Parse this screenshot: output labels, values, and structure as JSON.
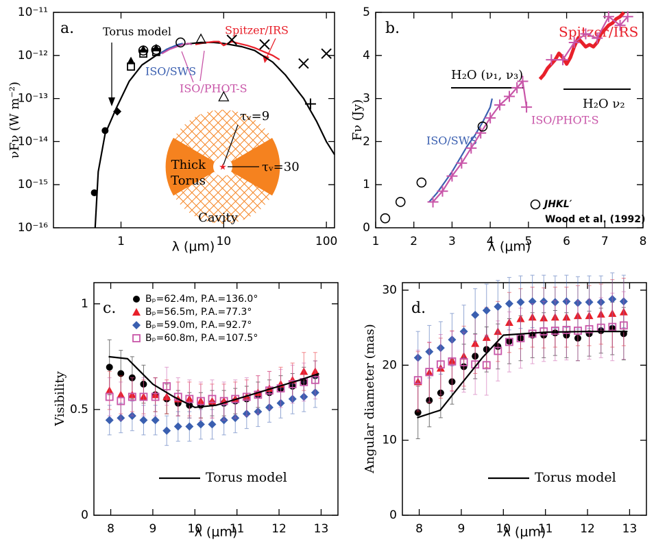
{
  "chart_data": [
    {
      "type": "scatter",
      "panel_label": "a.",
      "xlabel": "λ (μm)",
      "ylabel": "νFν (W m⁻²)",
      "xlog": true,
      "ylog": true,
      "xlim": [
        0.22,
        120
      ],
      "ylim": [
        1e-16,
        1e-11
      ],
      "xticks": [
        1,
        10,
        100
      ],
      "yticks": [
        {
          "value": 1e-16,
          "label": "10⁻¹⁶"
        },
        {
          "value": 1e-15,
          "label": "10⁻¹⁵"
        },
        {
          "value": 1e-14,
          "label": "10⁻¹⁴"
        },
        {
          "value": 1e-13,
          "label": "10⁻¹³"
        },
        {
          "value": 1e-12,
          "label": "10⁻¹²"
        },
        {
          "value": 1e-11,
          "label": "10⁻¹¹"
        }
      ],
      "series": [
        {
          "name": "Torus model",
          "style": "line",
          "color": "#000000",
          "x": [
            0.56,
            0.6,
            0.7,
            0.9,
            1.2,
            1.6,
            2.2,
            3,
            4,
            6,
            8,
            10,
            15,
            20,
            30,
            40,
            60,
            80,
            100,
            120
          ],
          "values": [
            1e-16,
            2e-15,
            1.5e-14,
            6e-14,
            2.5e-13,
            6e-13,
            1e-12,
            1.5e-12,
            1.8e-12,
            2e-12,
            2e-12,
            1.9e-12,
            1.6e-12,
            1.3e-12,
            7e-13,
            3.5e-13,
            1e-13,
            3e-14,
            1e-14,
            5e-15
          ]
        },
        {
          "name": "Spitzer/IRS",
          "style": "line",
          "color": "#e8202a",
          "x": [
            5.3,
            6,
            7,
            8,
            9,
            10,
            11,
            12,
            14,
            17,
            20,
            25,
            30,
            35
          ],
          "values": [
            1.8e-12,
            1.9e-12,
            2e-12,
            2.1e-12,
            2.1e-12,
            1.7e-12,
            1.9e-12,
            2.1e-12,
            1.9e-12,
            1.7e-12,
            1.5e-12,
            1.2e-12,
            1e-12,
            8e-13
          ]
        },
        {
          "name": "ISO/SWS",
          "style": "line",
          "color": "#3a5fb0",
          "x": [
            2.4,
            2.8,
            3.2,
            3.6,
            4.0
          ],
          "values": [
            1.1e-12,
            1.4e-12,
            1.6e-12,
            1.8e-12,
            1.9e-12
          ]
        },
        {
          "name": "ISO/PHOT-S",
          "style": "line",
          "color": "#c855a8",
          "x": [
            2.5,
            3,
            3.5,
            4,
            4.5,
            4.9
          ],
          "values": [
            1.1e-12,
            1.4e-12,
            1.6e-12,
            1.8e-12,
            1.9e-12,
            1.8e-12
          ]
        },
        {
          "style": "circle",
          "color": "#000000",
          "x": [
            0.55,
            0.7
          ],
          "values": [
            6.5e-16,
            1.8e-14
          ]
        },
        {
          "style": "diamond",
          "color": "#000000",
          "x": [
            0.92
          ],
          "values": [
            5e-14
          ]
        },
        {
          "style": "triangle",
          "color": "#000000",
          "x": [
            1.25,
            1.65,
            2.2
          ],
          "values": [
            7.5e-13,
            1.4e-12,
            1.5e-12
          ]
        },
        {
          "style": "square-open",
          "color": "#000000",
          "x": [
            1.25,
            1.65,
            2.2
          ],
          "values": [
            5.5e-13,
            1.1e-12,
            1.2e-12
          ]
        },
        {
          "style": "circle-open",
          "color": "#000000",
          "x": [
            1.65,
            2.2,
            3.8
          ],
          "values": [
            1.3e-12,
            1.35e-12,
            2e-12
          ]
        },
        {
          "style": "triangle-open",
          "color": "#000000",
          "x": [
            6,
            10
          ],
          "values": [
            2.4e-12,
            1.1e-13
          ]
        },
        {
          "style": "cross",
          "color": "#000000",
          "x": [
            12,
            25,
            60,
            100
          ],
          "values": [
            2.3e-12,
            1.8e-12,
            6.5e-13,
            1.1e-12
          ]
        },
        {
          "style": "plus",
          "color": "#000000",
          "x": [
            70
          ],
          "values": [
            7.5e-14
          ]
        }
      ],
      "annotations": [
        "Thick",
        "Torus",
        "Cavity",
        "τᵥ=9",
        "τᵥ=30"
      ]
    },
    {
      "type": "scatter",
      "panel_label": "b.",
      "xlabel": "λ (μm)",
      "ylabel": "Fν (Jy)",
      "xlim": [
        1,
        8
      ],
      "ylim": [
        0,
        5
      ],
      "xticks": [
        1,
        2,
        3,
        4,
        5,
        6,
        7,
        8
      ],
      "yticks": [
        0,
        1,
        2,
        3,
        4,
        5
      ],
      "series": [
        {
          "name": "Spitzer/IRS",
          "style": "line-thick",
          "color": "#e8202a",
          "x": [
            5.3,
            5.4,
            5.5,
            5.6,
            5.7,
            5.8,
            5.9,
            6.0,
            6.1,
            6.2,
            6.3,
            6.4,
            6.5,
            6.6,
            6.7,
            6.8,
            6.9,
            7.0,
            7.1,
            7.2,
            7.3,
            7.4,
            7.5
          ],
          "values": [
            3.45,
            3.55,
            3.7,
            3.8,
            3.9,
            4.05,
            3.95,
            3.8,
            3.95,
            4.2,
            4.4,
            4.3,
            4.2,
            4.25,
            4.2,
            4.3,
            4.5,
            4.6,
            4.7,
            4.75,
            4.85,
            4.9,
            5.0
          ]
        },
        {
          "name": "ISO/SWS",
          "style": "line",
          "color": "#3a5fb0",
          "x": [
            2.4,
            2.6,
            2.8,
            3.0,
            3.2,
            3.4,
            3.6,
            3.8,
            4.0,
            4.05
          ],
          "values": [
            0.6,
            0.8,
            1.05,
            1.3,
            1.6,
            1.9,
            2.15,
            2.45,
            2.8,
            3.0
          ]
        },
        {
          "name": "ISO/PHOT-S",
          "style": "line-plus",
          "color": "#c855a8",
          "x": [
            2.5,
            2.75,
            3.0,
            3.25,
            3.5,
            3.75,
            4.0,
            4.25,
            4.5,
            4.7,
            4.85,
            4.95,
            5.3,
            5.6,
            5.9,
            6.2,
            6.5,
            6.8,
            7.1,
            7.4,
            7.6
          ],
          "values": [
            0.6,
            0.85,
            1.2,
            1.5,
            1.85,
            2.2,
            2.55,
            2.85,
            3.05,
            3.25,
            3.4,
            2.8,
            null,
            3.9,
            3.9,
            4.3,
            4.5,
            4.4,
            4.9,
            4.7,
            4.9
          ]
        },
        {
          "name": "JHKL′",
          "style": "circle-open",
          "color": "#000000",
          "x": [
            1.25,
            1.65,
            2.2,
            3.8
          ],
          "values": [
            0.22,
            0.6,
            1.05,
            2.35
          ]
        }
      ],
      "annotations": [
        "H₂O (ν₁, ν₃)",
        "H₂O ν₂",
        "Wood et al. (1992)"
      ]
    },
    {
      "type": "scatter",
      "panel_label": "c.",
      "xlabel": "λ (μm)",
      "ylabel": "Visibility",
      "xlim": [
        7.6,
        13.4
      ],
      "ylim": [
        0,
        1.1
      ],
      "xticks": [
        8,
        9,
        10,
        11,
        12,
        13
      ],
      "yticks": [
        0,
        0.5,
        1
      ],
      "x": [
        7.97,
        8.24,
        8.51,
        8.78,
        9.06,
        9.33,
        9.6,
        9.87,
        10.14,
        10.41,
        10.69,
        10.96,
        11.23,
        11.5,
        11.77,
        12.04,
        12.32,
        12.59,
        12.86
      ],
      "series": [
        {
          "name": "Bₚ=62.4m, P.A.=136.0°",
          "style": "circle",
          "color": "#000000",
          "values": [
            0.7,
            0.67,
            0.65,
            0.62,
            0.57,
            0.55,
            0.53,
            0.52,
            0.52,
            0.53,
            0.53,
            0.54,
            0.55,
            0.57,
            0.58,
            0.6,
            0.61,
            0.63,
            0.66
          ],
          "errors": [
            0.13,
            0.11,
            0.1,
            0.09,
            0.08,
            0.07,
            0.06,
            0.06,
            0.06,
            0.06,
            0.06,
            0.06,
            0.06,
            0.06,
            0.06,
            0.06,
            0.06,
            0.07,
            0.07
          ]
        },
        {
          "name": "Bₚ=56.5m, P.A.=77.3°",
          "style": "triangle",
          "color": "#e8202a",
          "values": [
            0.59,
            0.57,
            0.57,
            0.56,
            0.57,
            0.56,
            0.55,
            0.55,
            0.54,
            0.54,
            0.54,
            0.55,
            0.56,
            0.58,
            0.6,
            0.62,
            0.64,
            0.68,
            0.68
          ],
          "errors": [
            0.09,
            0.09,
            0.08,
            0.08,
            0.08,
            0.08,
            0.08,
            0.08,
            0.08,
            0.08,
            0.08,
            0.08,
            0.08,
            0.08,
            0.08,
            0.08,
            0.08,
            0.09,
            0.09
          ]
        },
        {
          "name": "Bₚ=59.0m, P.A.=92.7°",
          "style": "diamond",
          "color": "#3a5fb0",
          "values": [
            0.45,
            0.46,
            0.47,
            0.45,
            0.45,
            0.4,
            0.42,
            0.42,
            0.43,
            0.43,
            0.45,
            0.46,
            0.48,
            0.49,
            0.51,
            0.53,
            0.55,
            0.56,
            0.58
          ],
          "errors": [
            0.07,
            0.07,
            0.07,
            0.07,
            0.07,
            0.07,
            0.07,
            0.07,
            0.07,
            0.07,
            0.07,
            0.07,
            0.07,
            0.07,
            0.07,
            0.07,
            0.07,
            0.07,
            0.07
          ]
        },
        {
          "name": "Bₚ=60.8m, P.A.=107.5°",
          "style": "square-open",
          "color": "#c855a8",
          "values": [
            0.56,
            0.54,
            0.56,
            0.56,
            0.56,
            0.61,
            0.56,
            0.55,
            0.54,
            0.55,
            0.54,
            0.55,
            0.56,
            0.57,
            0.59,
            0.6,
            0.62,
            0.63,
            0.64
          ],
          "errors": [
            0.09,
            0.09,
            0.09,
            0.09,
            0.09,
            0.09,
            0.09,
            0.09,
            0.09,
            0.09,
            0.09,
            0.09,
            0.09,
            0.09,
            0.09,
            0.09,
            0.09,
            0.09,
            0.09
          ]
        },
        {
          "name": "Torus model",
          "style": "line",
          "color": "#000000",
          "x": [
            7.95,
            8.4,
            8.6,
            9.0,
            9.5,
            10.0,
            10.5,
            11.0,
            11.5,
            12.0,
            12.5,
            12.95
          ],
          "values": [
            0.75,
            0.74,
            0.7,
            0.62,
            0.56,
            0.51,
            0.52,
            0.55,
            0.58,
            0.61,
            0.64,
            0.67
          ]
        }
      ]
    },
    {
      "type": "scatter",
      "panel_label": "d.",
      "xlabel": "λ (μm)",
      "ylabel": "Angular diameter (mas)",
      "xlim": [
        7.6,
        13.4
      ],
      "ylim": [
        0,
        31
      ],
      "xticks": [
        8,
        9,
        10,
        11,
        12,
        13
      ],
      "yticks": [
        0,
        10,
        20,
        30
      ],
      "x": [
        7.97,
        8.24,
        8.51,
        8.78,
        9.06,
        9.33,
        9.6,
        9.87,
        10.14,
        10.41,
        10.69,
        10.96,
        11.23,
        11.5,
        11.77,
        12.04,
        12.32,
        12.59,
        12.86
      ],
      "series": [
        {
          "style": "circle",
          "color": "#000000",
          "values": [
            13.7,
            15.3,
            16.3,
            17.8,
            19.8,
            21.2,
            22.1,
            22.5,
            23.2,
            23.6,
            24.0,
            24.0,
            24.3,
            24.0,
            23.6,
            24.2,
            24.6,
            24.9,
            24.2
          ],
          "errors": [
            3.5,
            3.5,
            3.3,
            3.0,
            3.0,
            3.0,
            3.0,
            3.0,
            3.0,
            3.0,
            3.0,
            3.0,
            3.0,
            3.0,
            3.0,
            3.0,
            3.0,
            3.5,
            3.5
          ]
        },
        {
          "style": "triangle",
          "color": "#e8202a",
          "values": [
            17.8,
            19.0,
            19.6,
            20.6,
            21.2,
            22.9,
            23.7,
            24.5,
            25.7,
            26.2,
            26.4,
            26.3,
            26.4,
            26.4,
            26.6,
            26.6,
            26.8,
            26.9,
            27.1
          ],
          "errors": [
            4,
            4,
            4,
            4,
            4,
            4,
            4,
            4,
            4,
            4,
            4,
            4,
            4,
            4,
            4,
            4,
            4,
            4.5,
            4.5
          ]
        },
        {
          "style": "diamond",
          "color": "#3a5fb0",
          "values": [
            21.0,
            21.8,
            22.3,
            23.4,
            24.5,
            26.7,
            27.3,
            27.8,
            28.2,
            28.4,
            28.5,
            28.5,
            28.4,
            28.5,
            28.3,
            28.4,
            28.4,
            28.8,
            28.5
          ],
          "errors": [
            3.5,
            3.5,
            3.5,
            3.5,
            3.5,
            3.5,
            3.5,
            3.5,
            3.5,
            3.5,
            3.5,
            3.5,
            3.5,
            3.5,
            3.5,
            3.5,
            3.5,
            3.5,
            3.5
          ]
        },
        {
          "style": "square-open",
          "color": "#c855a8",
          "values": [
            18.0,
            19.1,
            20.1,
            20.5,
            20.4,
            20.1,
            20.0,
            21.9,
            23.1,
            23.6,
            24.2,
            24.5,
            24.6,
            24.7,
            24.6,
            24.8,
            25.0,
            25.1,
            25.3
          ],
          "errors": [
            4,
            4,
            4,
            4,
            4,
            4,
            4,
            4,
            4,
            4,
            4,
            4,
            4,
            4,
            4,
            4,
            4,
            4.5,
            4.5
          ]
        },
        {
          "name": "Torus model",
          "style": "line",
          "color": "#000000",
          "x": [
            7.95,
            8.5,
            9.0,
            9.5,
            10.0,
            10.5,
            11.0,
            12.0,
            12.95
          ],
          "values": [
            13,
            14,
            17.5,
            21,
            24,
            24.2,
            24.4,
            24.5,
            24.5
          ]
        }
      ]
    }
  ]
}
